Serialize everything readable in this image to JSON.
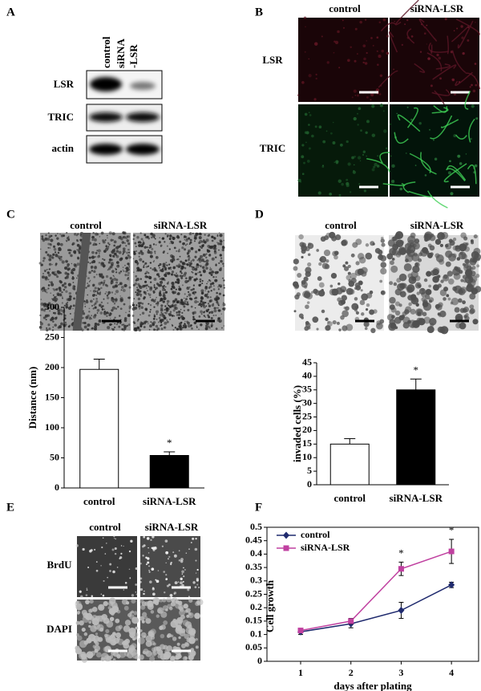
{
  "panel_labels": [
    "A",
    "B",
    "C",
    "D",
    "E",
    "F"
  ],
  "blot": {
    "columns": [
      [
        "control"
      ],
      [
        "siRNA",
        "-LSR"
      ]
    ],
    "rows": [
      "LSR",
      "TRIC",
      "actin"
    ]
  },
  "staining": {
    "columns": [
      "control",
      "siRNA-LSR"
    ],
    "rows": [
      "LSR",
      "TRIC"
    ]
  },
  "wound": {
    "columns": [
      "control",
      "siRNA-LSR"
    ]
  },
  "invasion": {
    "columns": [
      "control",
      "siRNA-LSR"
    ]
  },
  "proliferation": {
    "columns": [
      "control",
      "siRNA-LSR"
    ],
    "rows": [
      "BrdU",
      "DAPI"
    ]
  },
  "chart_data": [
    {
      "type": "bar",
      "y_label": "Distance (nm)",
      "categories": [
        "control",
        "siRNA-LSR"
      ],
      "values": [
        197,
        54
      ],
      "errors": [
        17,
        6
      ],
      "colors": [
        "#ffffff",
        "#000000"
      ],
      "significance": [
        null,
        "*"
      ],
      "ylim": [
        0,
        300
      ],
      "yticks": [
        0,
        50,
        100,
        150,
        200,
        250,
        300
      ]
    },
    {
      "type": "bar",
      "y_label": "invaded cells (%)",
      "categories": [
        "control",
        "siRNA-LSR"
      ],
      "values": [
        15,
        35
      ],
      "errors": [
        2,
        4
      ],
      "colors": [
        "#ffffff",
        "#000000"
      ],
      "significance": [
        null,
        "*"
      ],
      "ylim": [
        0,
        45
      ],
      "yticks": [
        0,
        5,
        10,
        15,
        20,
        25,
        30,
        35,
        40,
        45
      ]
    },
    {
      "type": "line",
      "x_label": "days after plating",
      "y_label": "Cell growth",
      "x": [
        1,
        2,
        3,
        4
      ],
      "xlim": [
        0.33,
        4.54
      ],
      "xticks": [
        1,
        2,
        3,
        4
      ],
      "ylim": [
        0,
        0.5
      ],
      "yticks": [
        0,
        0.05,
        0.1,
        0.15,
        0.2,
        0.25,
        0.3,
        0.35,
        0.4,
        0.45,
        0.5
      ],
      "legend": "upper left",
      "significance": [
        null,
        null,
        "*",
        "*"
      ],
      "series": [
        {
          "name": "control",
          "color": "#1f2a6e",
          "marker": "diamond",
          "values": [
            0.11,
            0.14,
            0.19,
            0.285
          ],
          "errors": [
            0.01,
            0.015,
            0.03,
            0.01
          ]
        },
        {
          "name": "siRNA-LSR",
          "color": "#c040a0",
          "marker": "square",
          "values": [
            0.115,
            0.15,
            0.345,
            0.41
          ],
          "errors": [
            0.005,
            0.01,
            0.025,
            0.045
          ]
        }
      ]
    }
  ]
}
